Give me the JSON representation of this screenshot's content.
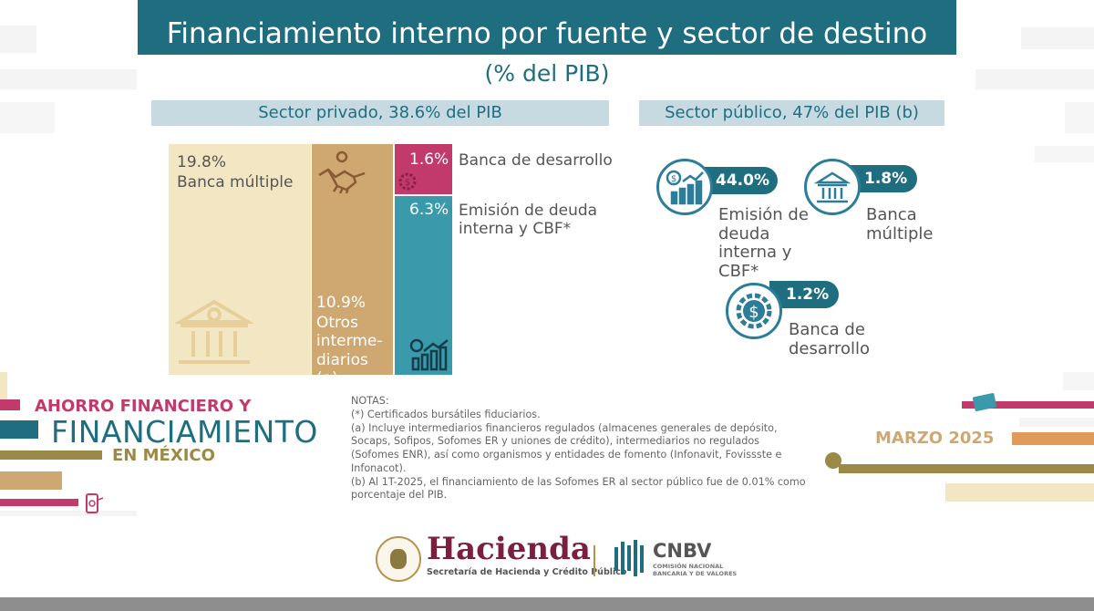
{
  "title": "Financiamiento interno por fuente y sector de destino",
  "subtitle": "(% del PIB)",
  "private_sector": {
    "header": "Sector privado, 38.6% del PIB",
    "tiles": [
      {
        "pct": "19.8%",
        "label": "Banca múltiple"
      },
      {
        "pct": "10.9%",
        "label": "Otros interme-diarios (a)"
      },
      {
        "pct": "1.6%",
        "label": "Banca de desarrollo"
      },
      {
        "pct": "6.3%",
        "label": "Emisión de deuda interna y CBF*"
      }
    ]
  },
  "public_sector": {
    "header": "Sector público, 47% del PIB (b)",
    "items": [
      {
        "pct": "44.0%",
        "label": "Emisión de deuda interna y CBF*"
      },
      {
        "pct": "1.8%",
        "label": "Banca múltiple"
      },
      {
        "pct": "1.2%",
        "label": "Banca de desarrollo"
      }
    ]
  },
  "brand": {
    "line1": "AHORRO FINANCIERO Y",
    "line2": "FINANCIAMIENTO",
    "line3": "EN MÉXICO"
  },
  "notes": {
    "heading": "NOTAS:",
    "lines": [
      "(*) Certificados bursátiles fiduciarios.",
      "(a) Incluye intermediarios financieros regulados (almacenes generales de depósito, Socaps, Sofipos, Sofomes ER y uniones de crédito), intermediarios no regulados (Sofomes ENR), así como organismos y entidades de fomento (Infonavit, Fovissste e Infonacot).",
      "(b) Al 1T-2025, el financiamiento de las Sofomes ER al sector público fue de 0.01% como porcentaje del PIB."
    ]
  },
  "date": "MARZO 2025",
  "logos": {
    "hacienda": "Hacienda",
    "hacienda_sub": "Secretaría de Hacienda y Crédito Público",
    "cnbv": "CNBV",
    "cnbv_sub1": "COMISIÓN NACIONAL",
    "cnbv_sub2": "BANCARIA Y DE VALORES"
  },
  "colors": {
    "teal": "#1f6e80",
    "beige": "#f3e6c3",
    "tan": "#cfa871",
    "pink": "#c13a6b",
    "teal_tile": "#3a9aab",
    "olive": "#9a8a45",
    "orange": "#e09a5a"
  }
}
